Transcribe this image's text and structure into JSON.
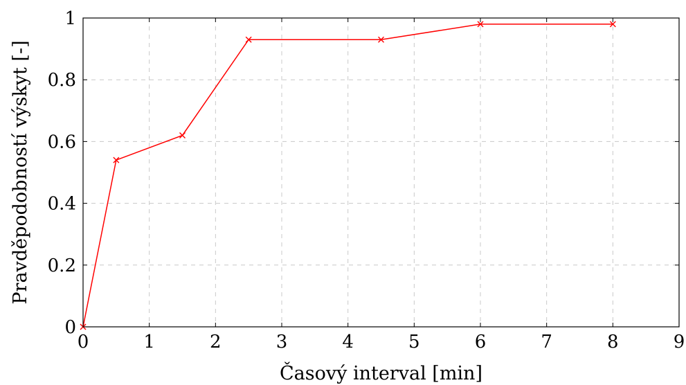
{
  "chart_data": {
    "type": "line",
    "title": "",
    "xlabel": "Časový interval [min]",
    "ylabel": "Pravděpodobností výskyt [-]",
    "xlim": [
      0,
      9
    ],
    "ylim": [
      0,
      1
    ],
    "xticks": [
      0,
      1,
      2,
      3,
      4,
      5,
      6,
      7,
      8,
      9
    ],
    "yticks": [
      0,
      0.2,
      0.4,
      0.6,
      0.8,
      1
    ],
    "xtick_labels": [
      "0",
      "1",
      "2",
      "3",
      "4",
      "5",
      "6",
      "7",
      "8",
      "9"
    ],
    "ytick_labels": [
      "0",
      "0.2",
      "0.4",
      "0.6",
      "0.8",
      "1"
    ],
    "grid": true,
    "grid_style": "dashed",
    "series": [
      {
        "color": "#ff0000",
        "marker": "x",
        "x": [
          0,
          0.5,
          1.5,
          2.5,
          4.5,
          6,
          8
        ],
        "y": [
          0,
          0.54,
          0.62,
          0.93,
          0.93,
          0.98,
          0.98
        ]
      }
    ]
  }
}
